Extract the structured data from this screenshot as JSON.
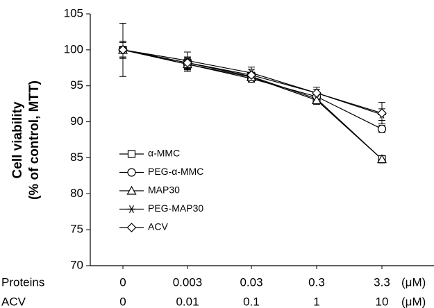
{
  "chart_data": {
    "type": "line",
    "ylabel": [
      "Cell viability",
      "(% of control, MTT)"
    ],
    "row_labels": [
      "Proteins",
      "ACV"
    ],
    "categories": [
      "0",
      "0.003",
      "0.03",
      "0.3",
      "3.3"
    ],
    "categories2": [
      "0",
      "0.01",
      "0.1",
      "1",
      "10"
    ],
    "x_unit": "(μM)",
    "ylim": [
      70,
      105
    ],
    "yticks": [
      70,
      75,
      80,
      85,
      90,
      95,
      100,
      105
    ],
    "series": [
      {
        "name": "α-MMC",
        "color": "#000000",
        "marker": "square",
        "values": [
          100,
          98.2,
          96.3,
          93.2,
          84.8
        ],
        "errors": [
          1.2,
          0.8,
          0.6,
          0.6,
          0.5
        ]
      },
      {
        "name": "PEG-α-MMC",
        "color": "#000000",
        "marker": "circle",
        "values": [
          100,
          98.0,
          96.0,
          93.5,
          89.0
        ],
        "errors": [
          1.0,
          0.8,
          0.5,
          0.6,
          0.5
        ]
      },
      {
        "name": "MAP30",
        "color": "#000000",
        "marker": "triangle",
        "values": [
          100,
          98.0,
          96.2,
          93.0,
          84.8
        ],
        "errors": [
          1.0,
          1.0,
          0.6,
          0.6,
          0.5
        ]
      },
      {
        "name": "PEG-MAP30",
        "color": "#000000",
        "marker": "star",
        "values": [
          100,
          98.5,
          96.8,
          94.0,
          91.0
        ],
        "errors": [
          1.0,
          1.2,
          0.8,
          0.8,
          0.8
        ]
      },
      {
        "name": "ACV",
        "color": "#000000",
        "marker": "diamond",
        "values": [
          100,
          98.2,
          96.5,
          94.0,
          91.2
        ],
        "errors": [
          3.7,
          0.8,
          0.8,
          0.5,
          1.5
        ]
      }
    ]
  }
}
